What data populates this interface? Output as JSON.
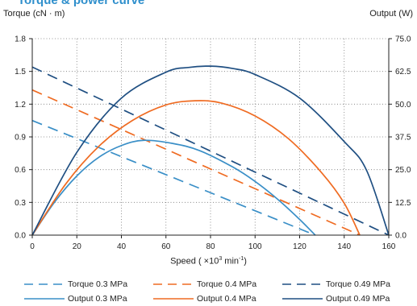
{
  "chart_data": {
    "type": "line",
    "title": "Torque & power curve",
    "xlabel_prefix": "Speed ( ×10",
    "xlabel_sup1": "3",
    "xlabel_mid": " min",
    "xlabel_sup2": "-1",
    "xlabel_suffix": ")",
    "ylabel_left": "Torque (cN · m)",
    "ylabel_right": "Output (W)",
    "xlim": [
      0,
      160
    ],
    "ylim_left": [
      0,
      1.8
    ],
    "ylim_right": [
      0,
      75
    ],
    "x_ticks": [
      "0",
      "20",
      "40",
      "60",
      "80",
      "100",
      "120",
      "140",
      "160"
    ],
    "y_ticks_left": [
      "0.0",
      "0.3",
      "0.6",
      "0.9",
      "1.2",
      "1.5",
      "1.8"
    ],
    "y_ticks_right": [
      "0.0",
      "12.5",
      "25.0",
      "37.5",
      "50.0",
      "62.5",
      "75.0"
    ],
    "grid": true,
    "legend_position": "bottom",
    "series": [
      {
        "name": "Torque 0.3 MPa",
        "axis": "left",
        "style": "dashed",
        "color": "#3a8fc7",
        "x": [
          0,
          127
        ],
        "y": [
          1.05,
          0.0
        ]
      },
      {
        "name": "Torque 0.4 MPa",
        "axis": "left",
        "style": "dashed",
        "color": "#ef6b22",
        "x": [
          0,
          147
        ],
        "y": [
          1.33,
          0.0
        ]
      },
      {
        "name": "Torque 0.49 MPa",
        "axis": "left",
        "style": "dashed",
        "color": "#1f4f82",
        "x": [
          0,
          160
        ],
        "y": [
          1.54,
          0.0
        ]
      },
      {
        "name": "Output 0.3 MPa",
        "axis": "right",
        "style": "solid",
        "color": "#3a8fc7",
        "x": [
          0,
          10,
          20,
          30,
          40,
          50,
          63,
          75,
          90,
          100,
          110,
          120,
          127
        ],
        "y": [
          0,
          12.6,
          22.6,
          29.8,
          34.2,
          36.2,
          35.0,
          32.3,
          26.0,
          20.5,
          13.8,
          6.0,
          0
        ]
      },
      {
        "name": "Output 0.4 MPa",
        "axis": "right",
        "style": "solid",
        "color": "#ef6b22",
        "x": [
          0,
          15,
          30,
          45,
          60,
          73,
          85,
          100,
          115,
          130,
          140,
          147
        ],
        "y": [
          0,
          19.5,
          34.0,
          43.8,
          49.7,
          51.3,
          50.4,
          45.5,
          36.8,
          23.7,
          12.2,
          0
        ]
      },
      {
        "name": "Output 0.49 MPa",
        "axis": "right",
        "style": "solid",
        "color": "#1f4f82",
        "x": [
          0,
          20,
          40,
          60,
          70,
          80,
          90,
          100,
          120,
          140,
          150,
          160
        ],
        "y": [
          0,
          31.6,
          52.3,
          62.2,
          64.0,
          64.5,
          63.6,
          61.3,
          52.3,
          35.7,
          24.8,
          0
        ]
      }
    ]
  }
}
